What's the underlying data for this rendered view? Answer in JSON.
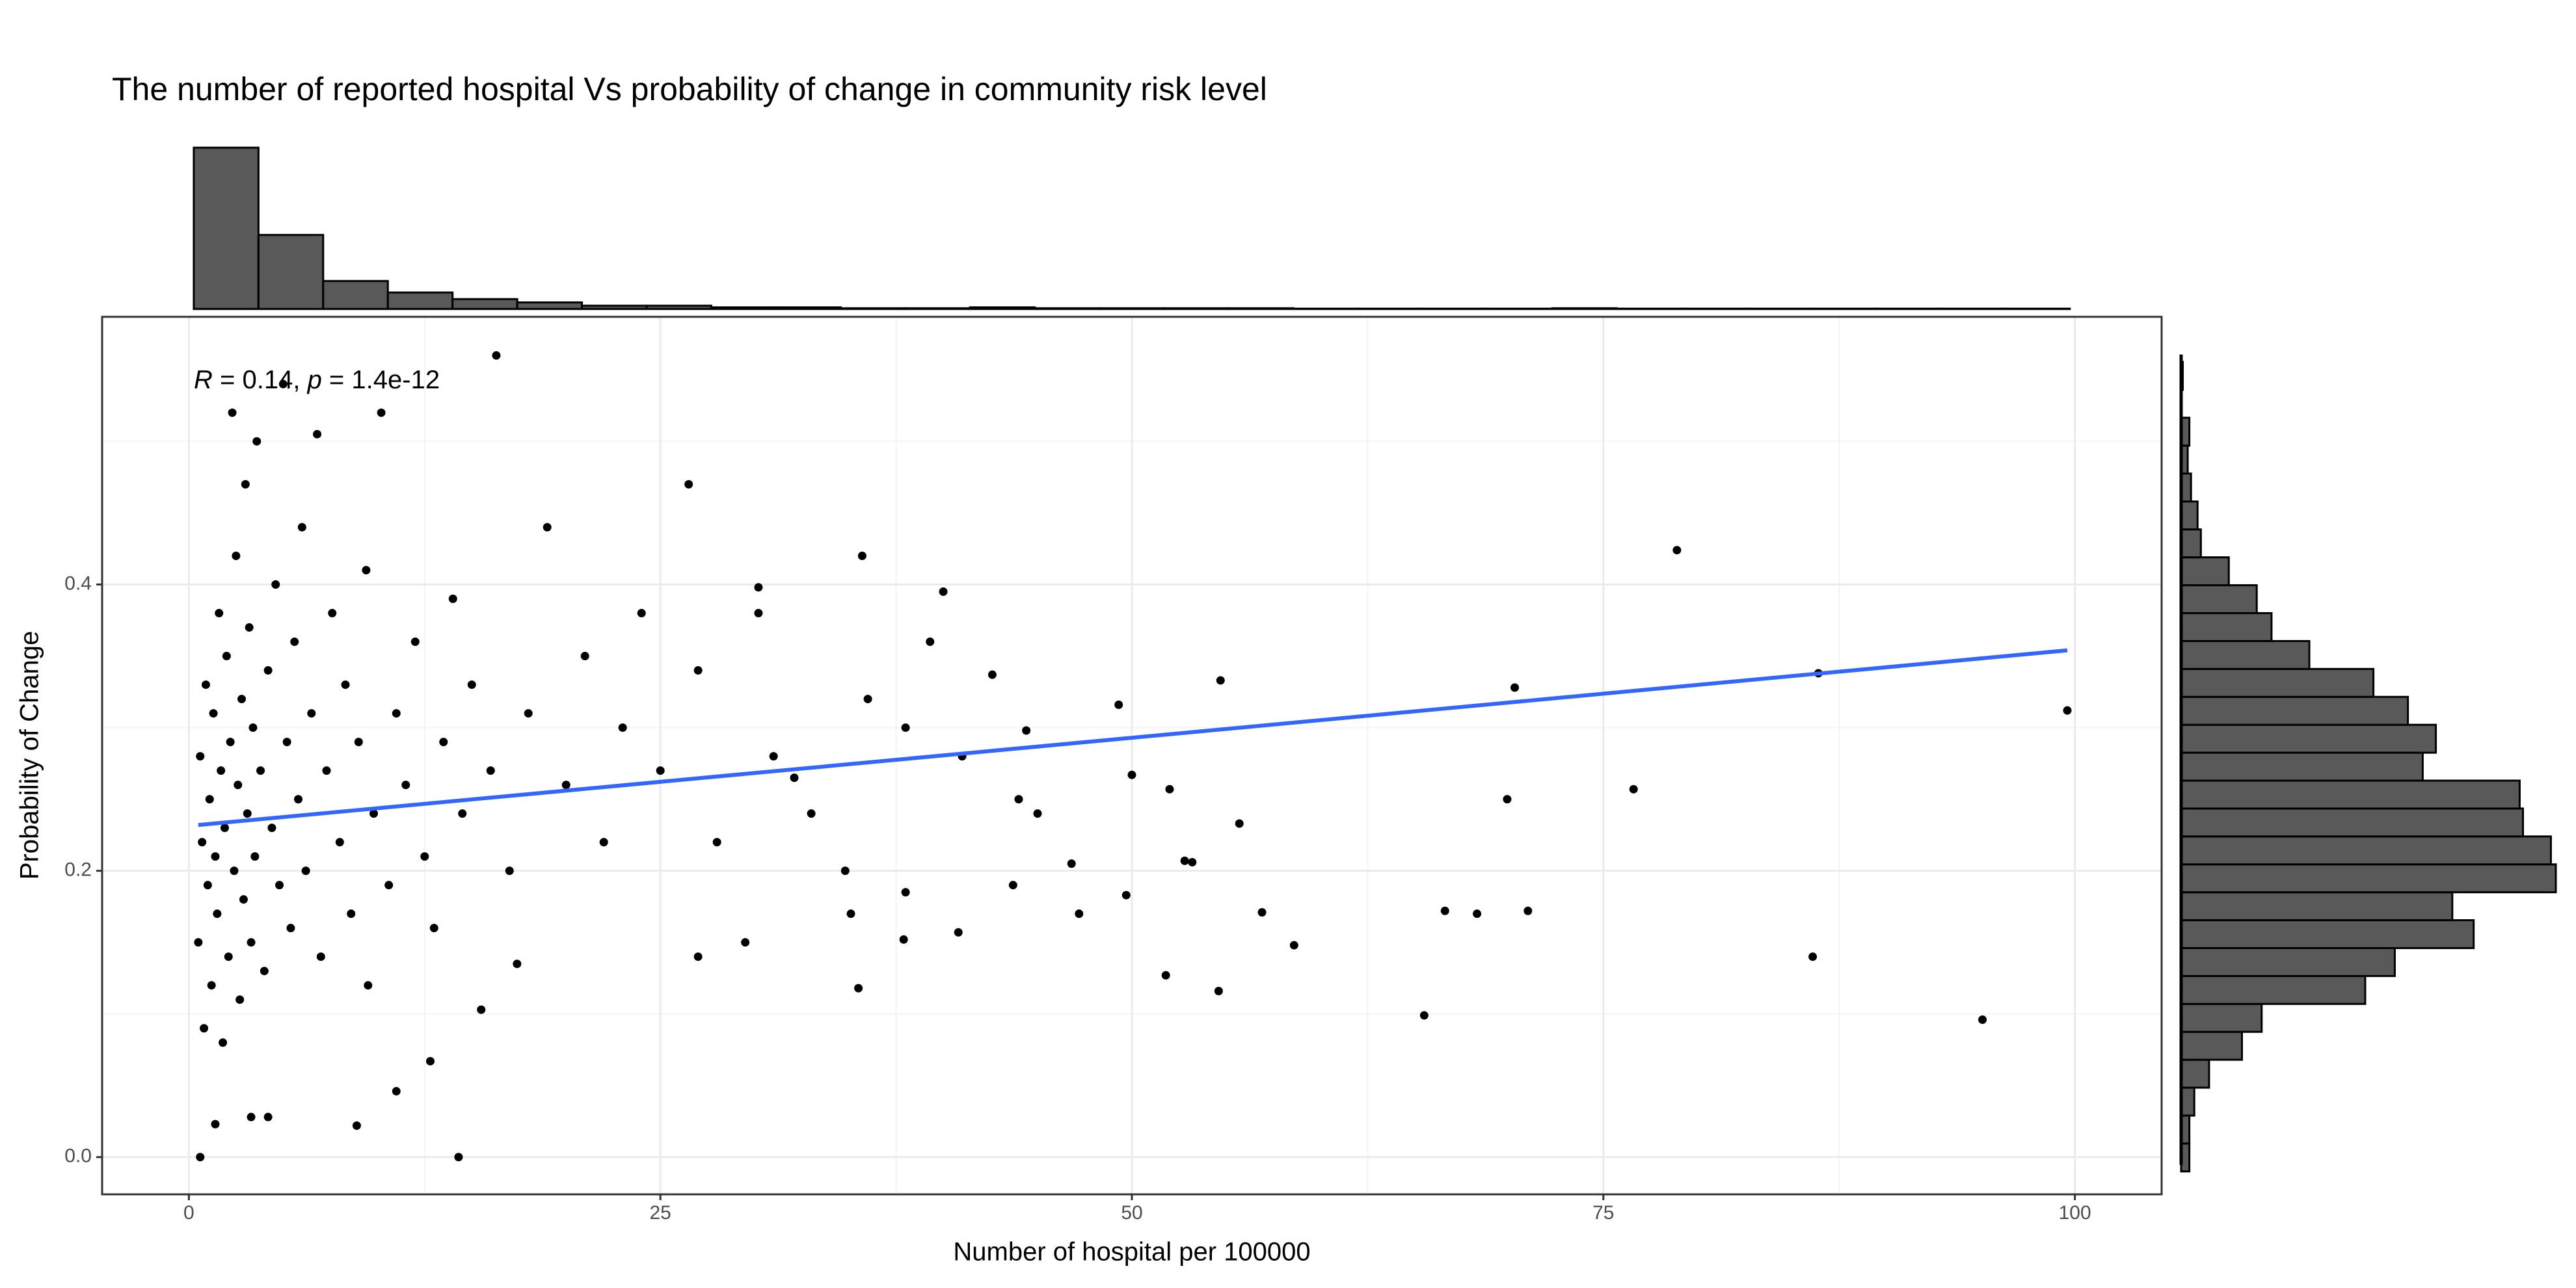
{
  "chart_data": [
    {
      "type": "scatter",
      "title": "The number of reported hospital Vs probability of change in community risk level",
      "x_label": "Number of hospital per 100000",
      "y_label": "Probability of Change",
      "annotation": [
        "R",
        " = 0.14, ",
        "p",
        " = 1.4e-12"
      ],
      "xlim": [
        -4.6,
        104.6
      ],
      "ylim": [
        -0.026,
        0.587
      ],
      "xticks": [
        0,
        25,
        50,
        75,
        100
      ],
      "yticks": [
        {
          "value": 0,
          "label": "0.0"
        },
        0.2,
        0.4
      ],
      "x_minor_ticks": [
        12.5,
        37.5,
        62.5,
        87.5
      ],
      "y_minor_ticks": [
        0.1,
        0.3,
        0.5
      ],
      "grid": true,
      "color": "#000000",
      "x": [
        0.5,
        0.6,
        0.7,
        0.8,
        0.9,
        1.0,
        1.1,
        1.2,
        1.3,
        1.4,
        1.5,
        1.6,
        1.7,
        1.8,
        1.9,
        2.0,
        2.1,
        2.2,
        2.3,
        2.4,
        2.5,
        2.6,
        2.7,
        2.8,
        2.9,
        3.0,
        3.1,
        3.2,
        3.3,
        3.4,
        3.5,
        3.6,
        3.8,
        4.0,
        4.2,
        4.4,
        4.6,
        4.8,
        5.0,
        5.2,
        5.4,
        5.6,
        5.8,
        6.0,
        6.2,
        6.5,
        6.8,
        7.0,
        7.3,
        7.6,
        8.0,
        8.3,
        8.6,
        9.0,
        9.4,
        9.8,
        10.2,
        10.6,
        11.0,
        11.5,
        12.0,
        12.5,
        13.0,
        13.5,
        14.0,
        14.5,
        15.0,
        16.0,
        17.0,
        18.0,
        19.0,
        20.0,
        21.0,
        22.0,
        23.0,
        24.0,
        25.0,
        27.0,
        28.0,
        31.0,
        33.0,
        36.0,
        38.0,
        41.0,
        44.0,
        16.3,
        26.5,
        35.7,
        40,
        30.2,
        30.2,
        39.3,
        42.6,
        49.3,
        54.7,
        44.4,
        78.9,
        70.3,
        86.4,
        99.6,
        69.9,
        76.6,
        52,
        50,
        55.7,
        52.8,
        53.2,
        49.7,
        56.9,
        58.6,
        51.8,
        54.6,
        65.5,
        95.1,
        86.1,
        66.6,
        68.3,
        71,
        46.8,
        47.2,
        45,
        43.7,
        40.8,
        38,
        37.9,
        35.5,
        35.1,
        34.8,
        32.1,
        29.5,
        27,
        14.3,
        0.6,
        8.9,
        1.4,
        3.3,
        4.2,
        9.5,
        12.8,
        11,
        15.5,
        17.4
      ],
      "y": [
        0.15,
        0.28,
        0.22,
        0.09,
        0.33,
        0.19,
        0.25,
        0.12,
        0.31,
        0.21,
        0.17,
        0.38,
        0.27,
        0.08,
        0.23,
        0.35,
        0.14,
        0.29,
        0.52,
        0.2,
        0.42,
        0.26,
        0.11,
        0.32,
        0.18,
        0.47,
        0.24,
        0.37,
        0.15,
        0.3,
        0.21,
        0.5,
        0.27,
        0.13,
        0.34,
        0.23,
        0.4,
        0.19,
        0.54,
        0.29,
        0.16,
        0.36,
        0.25,
        0.44,
        0.2,
        0.31,
        0.505,
        0.14,
        0.27,
        0.38,
        0.22,
        0.33,
        0.17,
        0.29,
        0.41,
        0.24,
        0.52,
        0.19,
        0.31,
        0.26,
        0.36,
        0.21,
        0.16,
        0.29,
        0.39,
        0.24,
        0.33,
        0.27,
        0.2,
        0.31,
        0.44,
        0.26,
        0.35,
        0.22,
        0.3,
        0.38,
        0.27,
        0.34,
        0.22,
        0.28,
        0.24,
        0.32,
        0.3,
        0.28,
        0.25,
        0.56,
        0.47,
        0.42,
        0.395,
        0.398,
        0.38,
        0.36,
        0.337,
        0.316,
        0.333,
        0.298,
        0.424,
        0.328,
        0.338,
        0.312,
        0.25,
        0.257,
        0.257,
        0.267,
        0.233,
        0.207,
        0.206,
        0.183,
        0.171,
        0.148,
        0.127,
        0.116,
        0.099,
        0.096,
        0.14,
        0.172,
        0.17,
        0.172,
        0.205,
        0.17,
        0.24,
        0.19,
        0.157,
        0.185,
        0.152,
        0.118,
        0.17,
        0.2,
        0.265,
        0.15,
        0.14,
        0.0,
        0.0,
        0.022,
        0.023,
        0.028,
        0.028,
        0.12,
        0.067,
        0.046,
        0.103,
        0.135
      ],
      "trend": {
        "x": [
          0.5,
          99.6
        ],
        "y": [
          0.232,
          0.354
        ],
        "color": "#3366ff"
      }
    },
    {
      "type": "histogram",
      "orientation": "vertical",
      "bins": [
        0.26,
        3.69,
        7.12,
        10.55,
        13.98,
        17.41,
        20.84,
        24.27,
        27.7,
        31.13,
        34.56,
        37.99,
        41.42,
        44.85,
        48.28,
        51.71,
        55.14,
        58.57,
        62,
        65.43,
        68.86,
        72.29,
        75.72,
        79.15,
        82.58,
        86.01,
        89.44,
        92.87,
        96.3,
        99.73
      ],
      "counts": [
        1274,
        585,
        221,
        130,
        78,
        52,
        26,
        26,
        13,
        13,
        6,
        6,
        13,
        6,
        6,
        6,
        6,
        3,
        3,
        3,
        3,
        6,
        3,
        3,
        3,
        3,
        3,
        3,
        3
      ],
      "ylim": [
        0,
        1274
      ],
      "color": "#595959"
    },
    {
      "type": "histogram",
      "orientation": "horizontal",
      "bins": [
        -0.01,
        0.0095,
        0.029,
        0.0485,
        0.068,
        0.0875,
        0.107,
        0.1265,
        0.146,
        0.1655,
        0.185,
        0.2045,
        0.224,
        0.2435,
        0.263,
        0.2825,
        0.302,
        0.3215,
        0.341,
        0.3605,
        0.38,
        0.3995,
        0.419,
        0.4385,
        0.458,
        0.4775,
        0.497,
        0.5165,
        0.536,
        0.5555
      ],
      "counts": [
        5,
        5,
        8,
        17,
        37,
        49,
        112,
        130,
        178,
        165,
        228,
        225,
        208,
        206,
        147,
        155,
        138,
        117,
        78,
        55,
        46,
        29,
        12,
        10,
        6,
        4,
        5,
        0,
        1
      ],
      "xlim": [
        0,
        228
      ],
      "color": "#595959"
    }
  ]
}
